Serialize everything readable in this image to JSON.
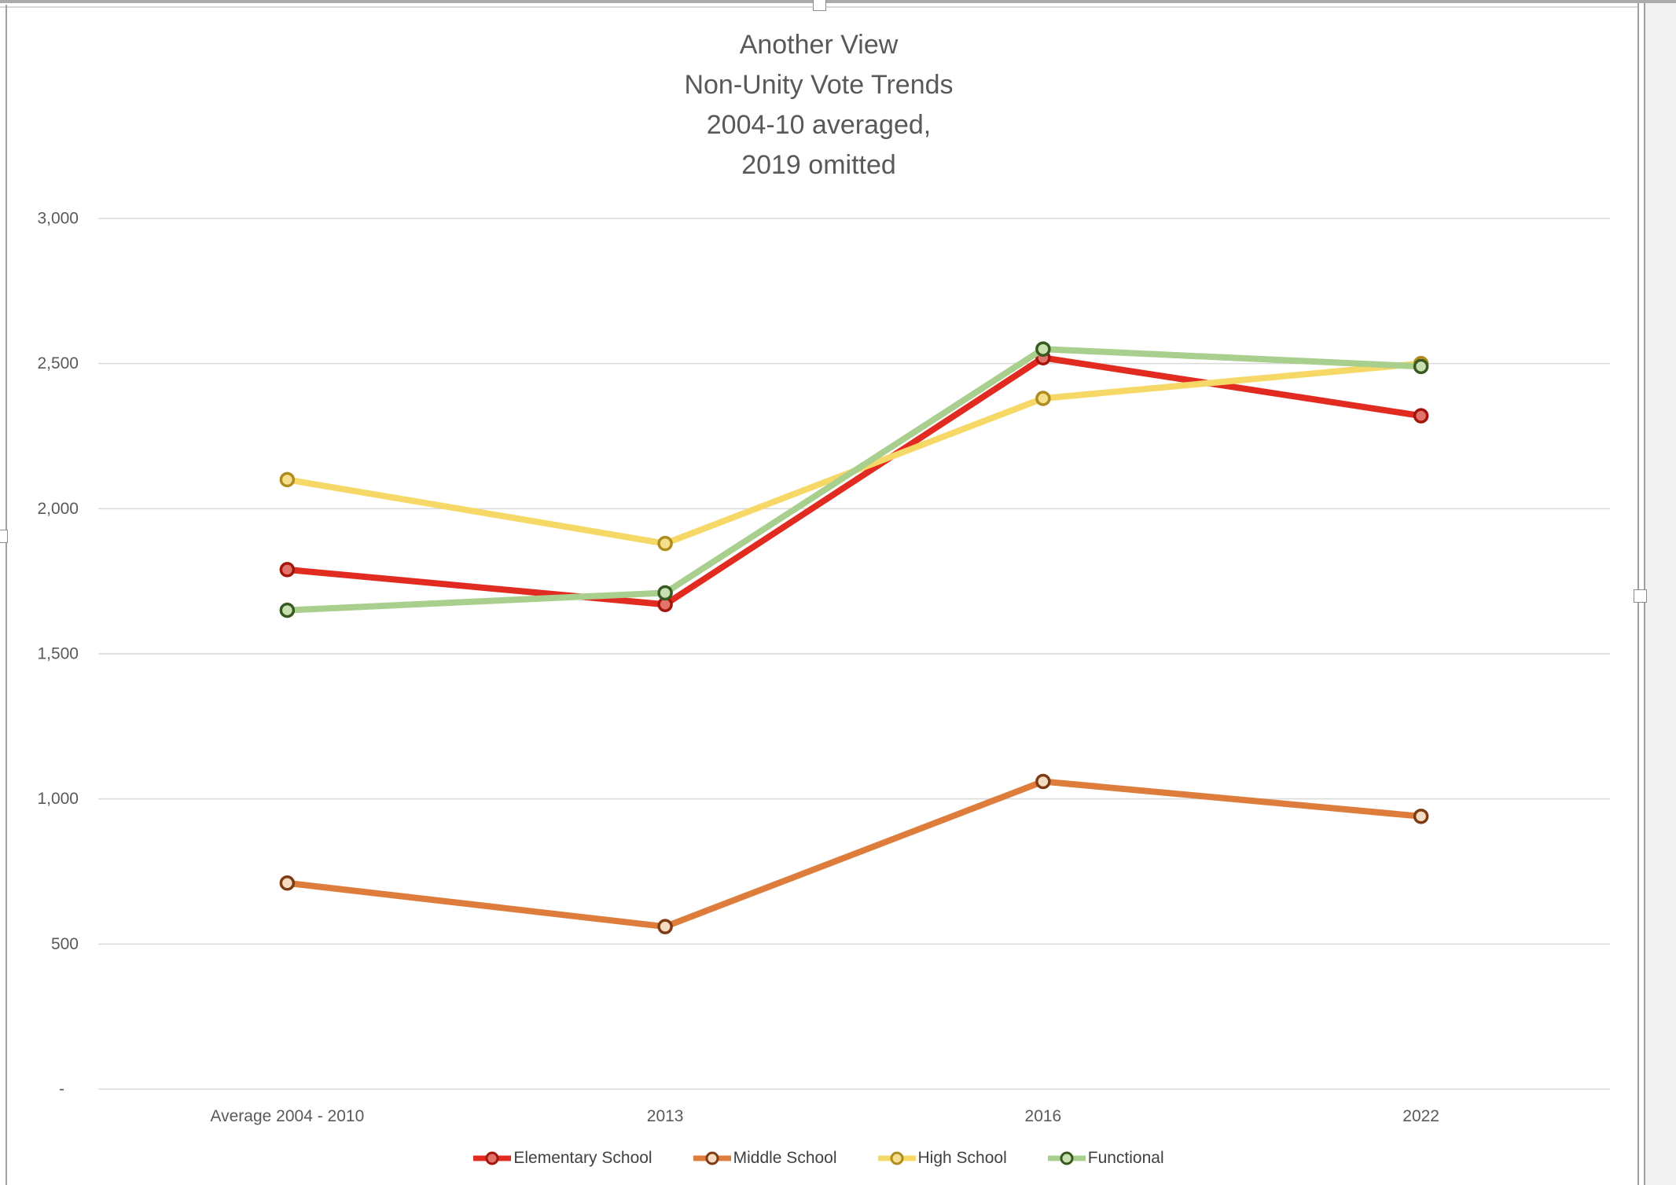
{
  "chart_data": {
    "type": "line",
    "title_lines": [
      "Another View",
      "Non-Unity Vote Trends",
      "2004-10 averaged,",
      "2019 omitted"
    ],
    "categories": [
      "Average 2004 - 2010",
      "2013",
      "2016",
      "2022"
    ],
    "series": [
      {
        "name": "Elementary School",
        "values": [
          1790,
          1670,
          2520,
          2320
        ],
        "line_color": "#E12B20",
        "marker_fill": "#E2736B",
        "marker_border": "#A3150B"
      },
      {
        "name": "Middle School",
        "values": [
          710,
          560,
          1060,
          940
        ],
        "line_color": "#DE7D3B",
        "marker_fill": "#F4DCC2",
        "marker_border": "#7E3A12"
      },
      {
        "name": "High School",
        "values": [
          2100,
          1880,
          2380,
          2500
        ],
        "line_color": "#F6D866",
        "marker_fill": "#F5DE8C",
        "marker_border": "#B08C1E"
      },
      {
        "name": "Functional",
        "values": [
          1650,
          1710,
          2550,
          2490
        ],
        "line_color": "#A8CF8D",
        "marker_fill": "#C8E0AF",
        "marker_border": "#375A21"
      }
    ],
    "y_axis": {
      "min": 0,
      "max": 3000,
      "step": 500,
      "tick_labels": [
        "3,000",
        "2,500",
        "2,000",
        "1,500",
        "1,000",
        "500",
        "-"
      ]
    },
    "grid": true,
    "legend_position": "bottom"
  },
  "colors": {
    "title_text": "#595959",
    "axis_text": "#595959",
    "legend_text": "#404040",
    "gridline": "#D9D9D9",
    "chrome_line": "#A0A0A0",
    "top_bar": "#ABABAB",
    "panel_bg": "#F1F1F1",
    "handle_fill": "#FFFFFF",
    "handle_border": "#8C8C8C"
  }
}
